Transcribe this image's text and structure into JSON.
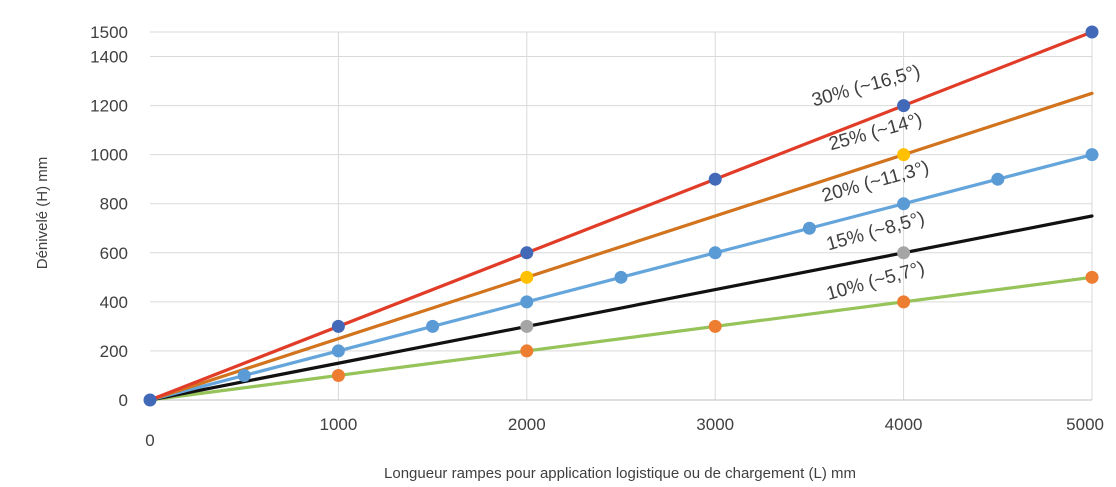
{
  "chart_data": {
    "type": "line",
    "title": "",
    "xlabel": "Longueur rampes pour application logistique ou de chargement (L) mm",
    "ylabel": "Dénivelé (H) mm",
    "xlim": [
      0,
      5000
    ],
    "ylim": [
      0,
      1500
    ],
    "x_ticks": [
      0,
      1000,
      2000,
      3000,
      4000,
      5000
    ],
    "y_ticks": [
      0,
      200,
      400,
      600,
      800,
      1000,
      1200,
      1400,
      1500
    ],
    "grid": true,
    "legend": "none",
    "series": [
      {
        "name": "30% (~16,5°)",
        "line_color": "#e03c28",
        "marker_color": "#4169b8",
        "line": [
          [
            0,
            0
          ],
          [
            5000,
            1500
          ]
        ],
        "points": [
          [
            0,
            0
          ],
          [
            1000,
            300
          ],
          [
            2000,
            600
          ],
          [
            3000,
            900
          ],
          [
            4000,
            1200
          ],
          [
            5000,
            1500
          ]
        ]
      },
      {
        "name": "25% (~14°)",
        "line_color": "#d2731e",
        "marker_color": "#ffc000",
        "line": [
          [
            0,
            0
          ],
          [
            5000,
            1250
          ]
        ],
        "points": [
          [
            2000,
            500
          ],
          [
            4000,
            1000
          ]
        ]
      },
      {
        "name": "20% (~11,3°)",
        "line_color": "#64a5dc",
        "marker_color": "#5b9bd5",
        "line": [
          [
            0,
            0
          ],
          [
            5000,
            1000
          ]
        ],
        "points": [
          [
            500,
            100
          ],
          [
            1000,
            200
          ],
          [
            1500,
            300
          ],
          [
            2000,
            400
          ],
          [
            2500,
            500
          ],
          [
            3000,
            600
          ],
          [
            3500,
            700
          ],
          [
            4000,
            800
          ],
          [
            4500,
            900
          ],
          [
            5000,
            1000
          ]
        ]
      },
      {
        "name": "15% (~8,5°)",
        "line_color": "#111111",
        "marker_color": "#a5a5a5",
        "line": [
          [
            0,
            0
          ],
          [
            5000,
            750
          ]
        ],
        "points": [
          [
            2000,
            300
          ],
          [
            4000,
            600
          ]
        ]
      },
      {
        "name": "10% (~5,7°)",
        "line_color": "#96c35a",
        "marker_color": "#ed7d31",
        "line": [
          [
            0,
            0
          ],
          [
            5000,
            500
          ]
        ],
        "points": [
          [
            1000,
            100
          ],
          [
            2000,
            200
          ],
          [
            3000,
            300
          ],
          [
            4000,
            400
          ],
          [
            5000,
            500
          ]
        ]
      }
    ]
  }
}
